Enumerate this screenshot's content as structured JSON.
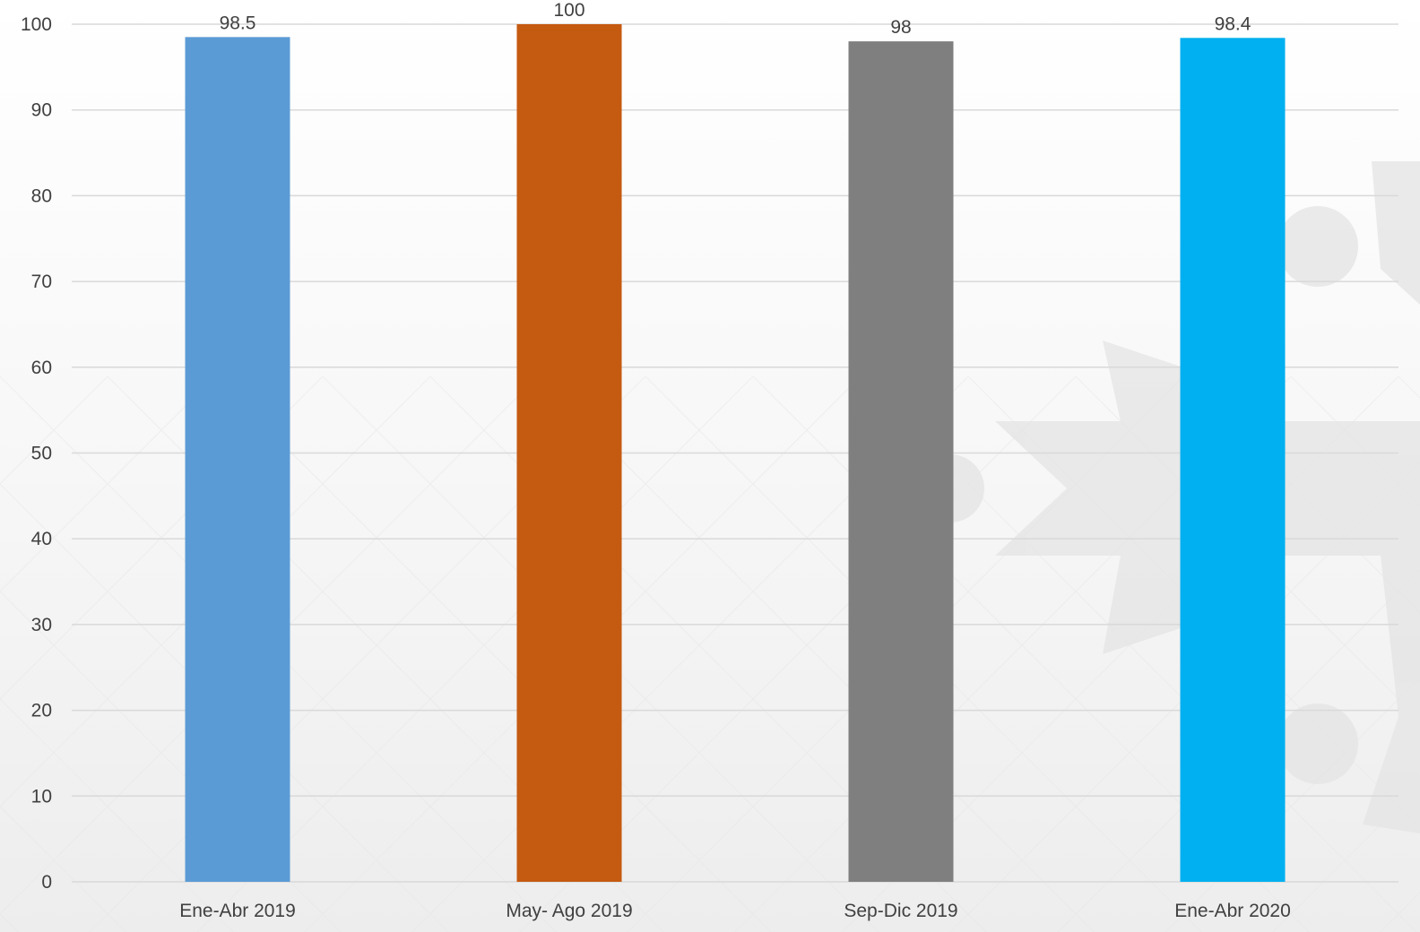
{
  "chart_data": {
    "type": "bar",
    "categories": [
      "Ene-Abr 2019",
      "May- Ago 2019",
      "Sep-Dic 2019",
      "Ene-Abr 2020"
    ],
    "values": [
      98.5,
      100,
      98,
      98.4
    ],
    "data_labels": [
      "98.5",
      "100",
      "98",
      "98.4"
    ],
    "bar_colors": [
      "#5b9bd5",
      "#c55a11",
      "#7f7f7f",
      "#00b0f0"
    ],
    "title": "",
    "xlabel": "",
    "ylabel": "",
    "ylim": [
      0,
      100
    ],
    "yticks": [
      0,
      10,
      20,
      30,
      40,
      50,
      60,
      70,
      80,
      90,
      100
    ],
    "ytick_labels": [
      "0",
      "10",
      "20",
      "30",
      "40",
      "50",
      "60",
      "70",
      "80",
      "90",
      "100"
    ],
    "grid": true,
    "legend": "none"
  }
}
